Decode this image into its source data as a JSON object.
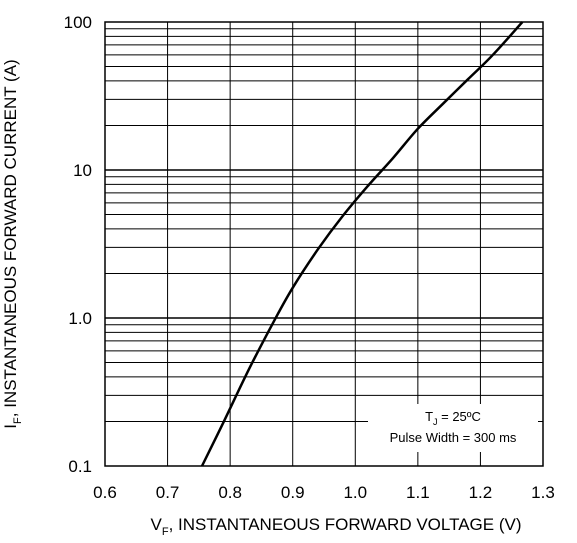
{
  "chart_data": {
    "type": "line",
    "xlabel": {
      "main": "V",
      "sub": "F",
      "rest": ", INSTANTANEOUS FORWARD VOLTAGE (V)"
    },
    "ylabel": {
      "main": "I",
      "sub": "F",
      "rest": ", INSTANTANEOUS FORWARD CURRENT (A)"
    },
    "x_scale": "linear",
    "y_scale": "log",
    "xlim": [
      0.6,
      1.3
    ],
    "ylim": [
      0.1,
      100
    ],
    "x_ticks": [
      "0.6",
      "0.7",
      "0.8",
      "0.9",
      "1.0",
      "1.1",
      "1.2",
      "1.3"
    ],
    "y_ticks": [
      {
        "value": 0.1,
        "label": "0.1"
      },
      {
        "value": 1,
        "label": "1.0"
      },
      {
        "value": 10,
        "label": "10"
      },
      {
        "value": 100,
        "label": "100"
      }
    ],
    "grid": true,
    "series": [
      {
        "color": "#000000",
        "x": [
          0.755,
          0.79,
          0.83,
          0.87,
          0.9,
          0.94,
          0.98,
          1.02,
          1.06,
          1.1,
          1.14,
          1.18,
          1.22,
          1.267
        ],
        "y": [
          0.1,
          0.2,
          0.45,
          0.95,
          1.6,
          2.9,
          4.9,
          7.8,
          12,
          19,
          28,
          41,
          60,
          100
        ]
      }
    ],
    "annotation": {
      "line1": {
        "main": "T",
        "sub": "J",
        "rest": " = 25ºC"
      },
      "line2": "Pulse Width = 300 ms"
    }
  }
}
